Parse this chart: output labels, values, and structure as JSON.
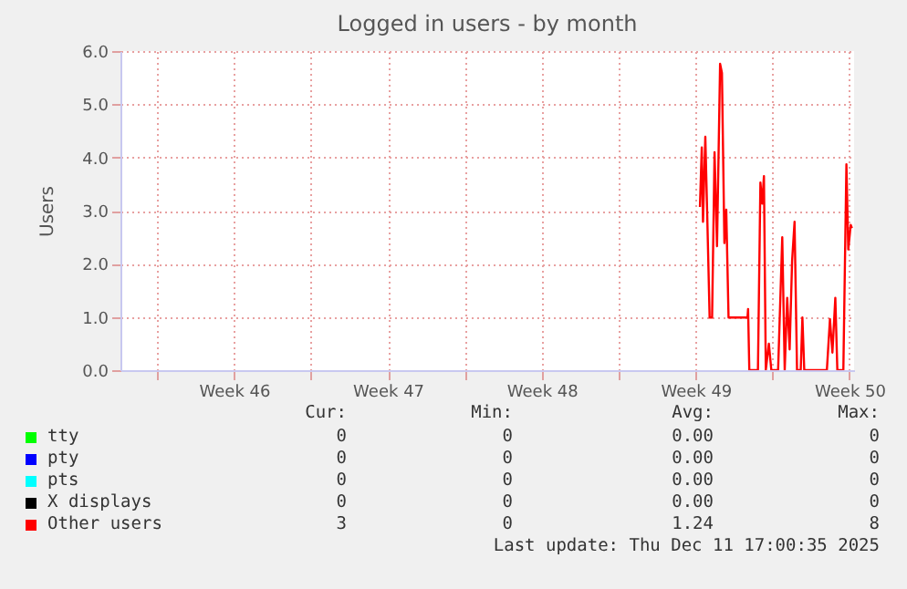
{
  "chart_data": {
    "type": "line",
    "title": "Logged in users - by month",
    "ylabel": "Users",
    "x": [
      "2025-12-04T16:42",
      "2025-12-04T18:43",
      "2025-12-04T20:04",
      "2025-12-04T22:35",
      "2025-12-05T00:36",
      "2025-12-05T03:17",
      "2025-12-05T05:59",
      "2025-12-05T08:40",
      "2025-12-05T11:21",
      "2025-12-05T14:43",
      "2025-12-05T16:44",
      "2025-12-05T19:25",
      "2025-12-05T21:26",
      "2025-12-05T23:57",
      "2025-12-06T20:37",
      "2025-12-06T21:17",
      "2025-12-06T22:38",
      "2025-12-07T08:02",
      "2025-12-07T10:44",
      "2025-12-07T12:44",
      "2025-12-07T14:35",
      "2025-12-07T16:37",
      "2025-12-07T19:58",
      "2025-12-07T22:40",
      "2025-12-08T06:03",
      "2025-12-08T10:35",
      "2025-12-08T13:16",
      "2025-12-08T15:58",
      "2025-12-08T18:39",
      "2025-12-08T21:20",
      "2025-12-09T00:01",
      "2025-12-09T02:43",
      "2025-12-09T06:44",
      "2025-12-09T08:35",
      "2025-12-09T10:37",
      "2025-12-10T11:18",
      "2025-12-10T14:40",
      "2025-12-10T17:21",
      "2025-12-10T20:32",
      "2025-12-10T22:44",
      "2025-12-11T05:17",
      "2025-12-11T08:38",
      "2025-12-11T10:40",
      "2025-12-11T13:20",
      "2025-12-11T14:41"
    ],
    "series": [
      {
        "name": "tty",
        "color": "#00ff00",
        "values": [
          null,
          null,
          null,
          null,
          null,
          null,
          null,
          null,
          null,
          null,
          null,
          null,
          null,
          null,
          null,
          null,
          null,
          null,
          null,
          null,
          null,
          null,
          null,
          null,
          null,
          null,
          null,
          null,
          null,
          null,
          null,
          null,
          null,
          null,
          null,
          null,
          null,
          null,
          null,
          null,
          null,
          null,
          null,
          null,
          null
        ]
      },
      {
        "name": "pty",
        "color": "#0000ff",
        "values": [
          null,
          null,
          null,
          null,
          null,
          null,
          null,
          null,
          null,
          null,
          null,
          null,
          null,
          null,
          null,
          null,
          null,
          null,
          null,
          null,
          null,
          null,
          null,
          null,
          null,
          null,
          null,
          null,
          null,
          null,
          null,
          null,
          null,
          null,
          null,
          null,
          null,
          null,
          null,
          null,
          null,
          null,
          null,
          null,
          null
        ]
      },
      {
        "name": "pts",
        "color": "#00ffff",
        "values": [
          null,
          null,
          null,
          null,
          null,
          null,
          null,
          null,
          null,
          null,
          null,
          null,
          null,
          null,
          null,
          null,
          null,
          null,
          null,
          null,
          null,
          null,
          null,
          null,
          null,
          null,
          null,
          null,
          null,
          null,
          null,
          null,
          null,
          null,
          null,
          null,
          null,
          null,
          null,
          null,
          null,
          null,
          null,
          null,
          null
        ]
      },
      {
        "name": "X displays",
        "color": "#000000",
        "values": [
          null,
          null,
          null,
          null,
          null,
          null,
          null,
          null,
          null,
          null,
          null,
          null,
          null,
          null,
          null,
          null,
          null,
          null,
          null,
          null,
          null,
          null,
          null,
          null,
          null,
          null,
          null,
          null,
          null,
          null,
          null,
          null,
          null,
          null,
          null,
          null,
          null,
          null,
          null,
          null,
          null,
          null,
          null,
          null,
          null
        ]
      },
      {
        "name": "Other users",
        "color": "#ff0000",
        "values": [
          3.07,
          4.19,
          2.79,
          4.39,
          2.96,
          0.99,
          0.99,
          4.1,
          2.33,
          5.76,
          5.59,
          2.39,
          3.02,
          0.99,
          0.99,
          1.15,
          0,
          0,
          3.53,
          3.13,
          3.65,
          0,
          0.5,
          0,
          0,
          2.5,
          0,
          1.36,
          0.39,
          2.05,
          2.79,
          0,
          0,
          0.99,
          0,
          0,
          0.96,
          0.33,
          1.36,
          0,
          0,
          3.87,
          2.27,
          2.73,
          2.67
        ]
      }
    ],
    "xlim": [
      "2025-11-08T08:00",
      "2025-12-11T17:00"
    ],
    "xticks": [
      {
        "value": "2025-11-10T00:00",
        "label": null
      },
      {
        "value": "2025-11-13T12:00",
        "label": "Week 46"
      },
      {
        "value": "2025-11-17T00:00",
        "label": null
      },
      {
        "value": "2025-11-20T12:00",
        "label": "Week 47"
      },
      {
        "value": "2025-11-24T00:00",
        "label": null
      },
      {
        "value": "2025-11-27T12:00",
        "label": "Week 48"
      },
      {
        "value": "2025-12-01T00:00",
        "label": null
      },
      {
        "value": "2025-12-04T12:00",
        "label": "Week 49"
      },
      {
        "value": "2025-12-08T00:00",
        "label": null
      },
      {
        "value": "2025-12-11T12:00",
        "label": "Week 50"
      }
    ],
    "ylim": [
      0,
      6
    ],
    "yticks": [
      {
        "value": 0,
        "label": "0.0"
      },
      {
        "value": 1,
        "label": "1.0"
      },
      {
        "value": 2,
        "label": "2.0"
      },
      {
        "value": 3,
        "label": "3.0"
      },
      {
        "value": 4,
        "label": "4.0"
      },
      {
        "value": 5,
        "label": "5.0"
      },
      {
        "value": 6,
        "label": "6.0"
      }
    ],
    "grid": true,
    "legend": "bottom",
    "annotations": [
      "Cur:",
      "Min:",
      "Avg:",
      "Max:",
      "0",
      "0",
      "0.00",
      "0",
      "0",
      "0",
      "0.00",
      "0",
      "0",
      "0",
      "0.00",
      "0",
      "0",
      "0",
      "0.00",
      "0",
      "3",
      "0",
      "1.24",
      "8",
      "Last update: Thu Dec 11 17:00:35 2025"
    ]
  }
}
